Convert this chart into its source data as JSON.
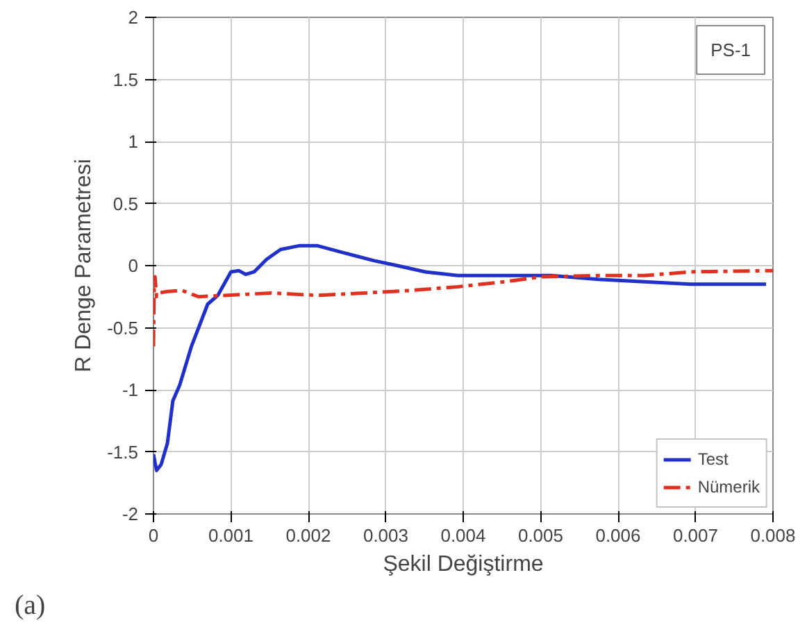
{
  "chart_data": {
    "type": "line",
    "xlabel": "Şekil Değiştirme",
    "ylabel": "R Denge Parametresi",
    "annotations": [
      "PS-1",
      "(a)"
    ],
    "xlim": [
      0,
      0.008
    ],
    "xticks": [
      0,
      0.001,
      0.002,
      0.003,
      0.004,
      0.005,
      0.006,
      0.007,
      0.008
    ],
    "ylim": [
      -2,
      2
    ],
    "yticks": [
      -2,
      -1.5,
      -1,
      -0.5,
      0,
      0.5,
      1,
      1.5,
      2
    ],
    "grid": true,
    "legend": "bottom right",
    "series": [
      {
        "name": "Test",
        "color": "#2030c8",
        "line_style": "solid",
        "x": [
          0,
          4e-05,
          0.0001,
          0.00018,
          0.00025,
          0.00034,
          0.00049,
          0.0007,
          0.00083,
          0.001,
          0.0011,
          0.00119,
          0.0013,
          0.00146,
          0.00164,
          0.00188,
          0.00212,
          0.00242,
          0.00285,
          0.00315,
          0.00351,
          0.00393,
          0.00453,
          0.00514,
          0.00574,
          0.00634,
          0.00694,
          0.00791
        ],
        "values": [
          -1.52,
          -1.65,
          -1.6,
          -1.43,
          -1.09,
          -0.96,
          -0.65,
          -0.31,
          -0.24,
          -0.05,
          -0.04,
          -0.07,
          -0.05,
          0.05,
          0.13,
          0.16,
          0.16,
          0.11,
          0.04,
          0,
          -0.05,
          -0.08,
          -0.08,
          -0.08,
          -0.11,
          -0.13,
          -0.15,
          -0.15
        ]
      },
      {
        "name": "Nümerik",
        "color": "#e03020",
        "line_style": "dashed",
        "x": [
          0,
          1e-05,
          2e-05,
          4e-05,
          7e-05,
          0.00016,
          0.00037,
          0.00058,
          0.00092,
          0.00152,
          0.00212,
          0.00272,
          0.00332,
          0.00393,
          0.00453,
          0.00501,
          0.00574,
          0.00634,
          0.00694,
          0.008
        ],
        "values": [
          -0.65,
          -0.1,
          -0.09,
          -0.25,
          -0.22,
          -0.21,
          -0.2,
          -0.25,
          -0.24,
          -0.22,
          -0.24,
          -0.22,
          -0.2,
          -0.17,
          -0.13,
          -0.09,
          -0.08,
          -0.08,
          -0.05,
          -0.04
        ]
      }
    ]
  }
}
